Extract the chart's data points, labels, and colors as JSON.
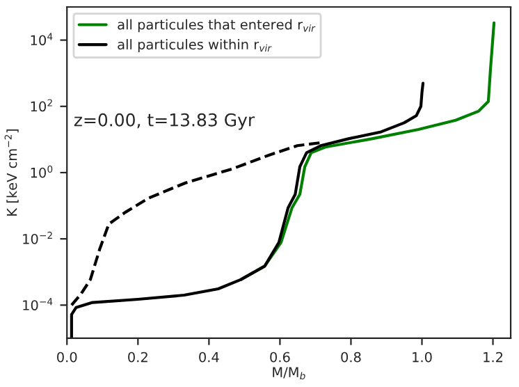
{
  "chart_data": {
    "type": "line",
    "xlabel": "M/M$_{b}$",
    "ylabel": "K [keV cm$^{−2}$]",
    "log": "y",
    "legend": "top left",
    "grid": false,
    "annotations": [
      "z=0.00, t=13.83 Gyr"
    ],
    "xlim": [
      0,
      1.25
    ],
    "ylim": [
      1e-05,
      100000.0
    ],
    "xticks": [
      {
        "value": 0,
        "label": "0.0"
      },
      0.2,
      0.4,
      0.6,
      0.8,
      {
        "value": 1,
        "label": "1.0"
      },
      1.2
    ],
    "yticks": [
      {
        "value": 0.0001,
        "label": "10$^{−4}$"
      },
      {
        "value": 0.01,
        "label": "10$^{−2}$"
      },
      {
        "value": 1,
        "label": "10$^{0}$"
      },
      {
        "value": 100,
        "label": "10$^{2}$"
      },
      {
        "value": 10000,
        "label": "10$^{4}$"
      }
    ],
    "series": [
      {
        "name": "all particules that entered r$_{vir}$",
        "color": "#008000",
        "line_style": "solid",
        "x": [
          0.49,
          0.557,
          0.603,
          0.634,
          0.656,
          0.67,
          0.688,
          0.728,
          0.859,
          0.99,
          1.095,
          1.16,
          1.187,
          1.193,
          1.203
        ],
        "values": [
          0.00059,
          0.0015,
          0.0078,
          0.087,
          0.22,
          1.5,
          4,
          5.9,
          10.5,
          20,
          38,
          72,
          140,
          1300,
          33000
        ]
      },
      {
        "name": "all particules within r$_{vir}$",
        "color": "#000000",
        "line_style": "solid",
        "x": [
          0.013,
          0.013,
          0.026,
          0.072,
          0.2,
          0.33,
          0.426,
          0.49,
          0.557,
          0.597,
          0.623,
          0.643,
          0.656,
          0.675,
          0.715,
          0.793,
          0.885,
          0.95,
          0.984,
          0.997,
          1.0,
          1.003
        ],
        "values": [
          1e-05,
          5.2e-05,
          8.5e-05,
          0.00012,
          0.00015,
          0.0002,
          0.00031,
          0.00059,
          0.0015,
          0.0078,
          0.087,
          0.22,
          1.5,
          4,
          6.5,
          10.5,
          17,
          32,
          52,
          100,
          260,
          500
        ]
      },
      {
        "color": "#000000",
        "line_style": "dashed",
        "x": [
          0.013,
          0.04,
          0.066,
          0.092,
          0.118,
          0.164,
          0.23,
          0.334,
          0.466,
          0.57,
          0.649,
          0.715
        ],
        "values": [
          0.0001,
          0.00022,
          0.00059,
          0.0048,
          0.028,
          0.063,
          0.17,
          0.49,
          1.3,
          3.4,
          6.5,
          8
        ]
      }
    ]
  }
}
